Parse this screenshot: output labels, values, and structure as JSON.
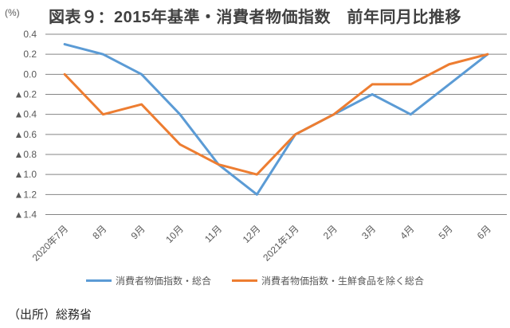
{
  "title": "図表９：2015年基準・消費者物価指数　前年同月比推移",
  "unit_label": "(%)",
  "source": "（出所）総務省",
  "colors": {
    "series_total": "#5B9BD5",
    "series_core": "#ED7D31",
    "gridline": "#848484",
    "tick_text": "#595959",
    "title_text": "#404040"
  },
  "legend": [
    {
      "label": "消費者物価指数・総合"
    },
    {
      "label": "消費者物価指数・生鮮食品を除く総合"
    }
  ],
  "chart_data": {
    "type": "line",
    "title": "図表９：2015年基準・消費者物価指数　前年同月比推移",
    "categories": [
      "2020年7月",
      "8月",
      "9月",
      "10月",
      "11月",
      "12月",
      "2021年1月",
      "2月",
      "3月",
      "4月",
      "5月",
      "6月"
    ],
    "series": [
      {
        "name": "消費者物価指数・総合",
        "color": "#5B9BD5",
        "values": [
          0.3,
          0.2,
          0.0,
          -0.4,
          -0.9,
          -1.2,
          -0.6,
          -0.4,
          -0.2,
          -0.4,
          -0.1,
          0.2
        ]
      },
      {
        "name": "消費者物価指数・生鮮食品を除く総合",
        "color": "#ED7D31",
        "values": [
          0.0,
          -0.4,
          -0.3,
          -0.7,
          -0.9,
          -1.0,
          -0.6,
          -0.4,
          -0.1,
          -0.1,
          0.1,
          0.2
        ]
      }
    ],
    "y_ticks": [
      {
        "label": "0.4",
        "value": 0.4
      },
      {
        "label": "0.2",
        "value": 0.2
      },
      {
        "label": "0.0",
        "value": 0.0
      },
      {
        "label": "▲0.2",
        "value": -0.2
      },
      {
        "label": "▲0.4",
        "value": -0.4
      },
      {
        "label": "▲0.6",
        "value": -0.6
      },
      {
        "label": "▲0.8",
        "value": -0.8
      },
      {
        "label": "▲1.0",
        "value": -1.0
      },
      {
        "label": "▲1.2",
        "value": -1.2
      },
      {
        "label": "▲1.4",
        "value": -1.4
      }
    ],
    "ylim": [
      -1.4,
      0.4
    ],
    "xlabel": "",
    "ylabel": "(%)",
    "grid": "horizontal",
    "legend_position": "bottom"
  }
}
